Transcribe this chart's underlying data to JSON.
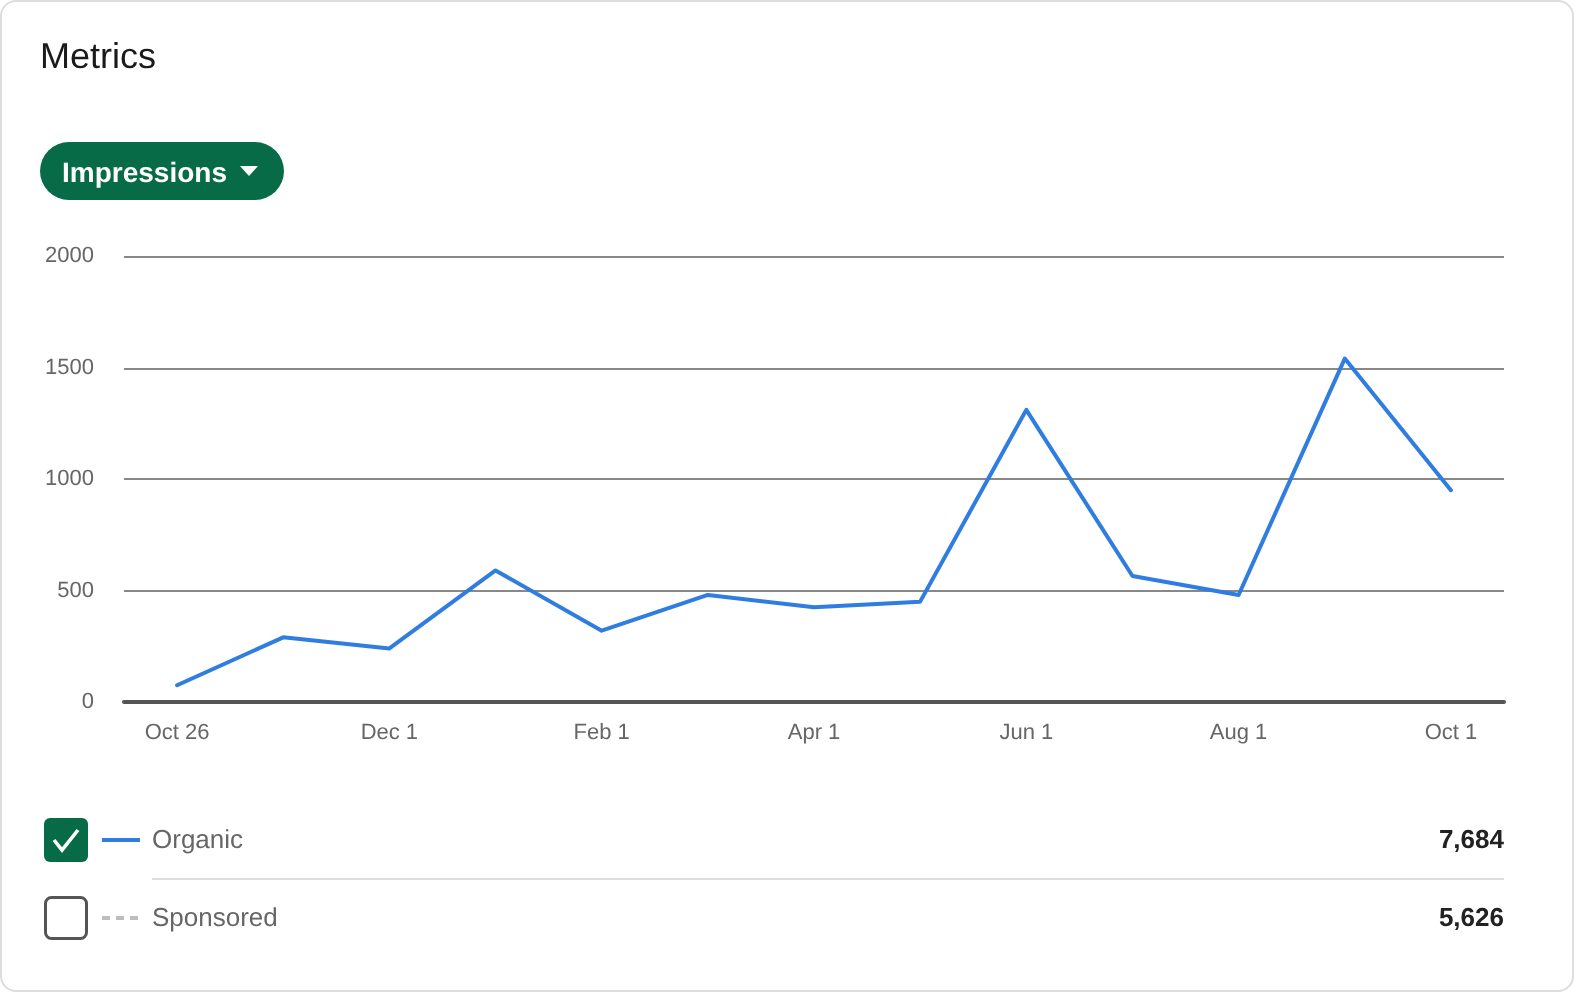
{
  "chart_data": {
    "type": "line",
    "title": "Metrics",
    "subtitle": "Impressions",
    "categories": [
      "Oct 26",
      null,
      "Dec 1",
      null,
      "Feb 1",
      null,
      "Apr 1",
      null,
      "Jun 1",
      null,
      "Aug 1",
      null,
      "Oct 1"
    ],
    "series": [
      {
        "name": "Organic",
        "color": "#2f7de1",
        "line_style": "solid",
        "values": [
          75,
          290,
          240,
          590,
          320,
          480,
          425,
          450,
          1310,
          565,
          480,
          1540,
          950
        ]
      },
      {
        "name": "Sponsored",
        "color": "#bdbdbd",
        "line_style": "dashed",
        "values": [
          null,
          null,
          null,
          null,
          null,
          null,
          null,
          null,
          null,
          null,
          null,
          null,
          null
        ]
      }
    ],
    "annotations": [
      "7,684",
      "5,626"
    ],
    "ylim": [
      0,
      2000
    ],
    "yticks": [
      0,
      500,
      1000,
      1500,
      2000
    ],
    "grid": "y",
    "legend": "bottom",
    "marker": "none"
  }
}
